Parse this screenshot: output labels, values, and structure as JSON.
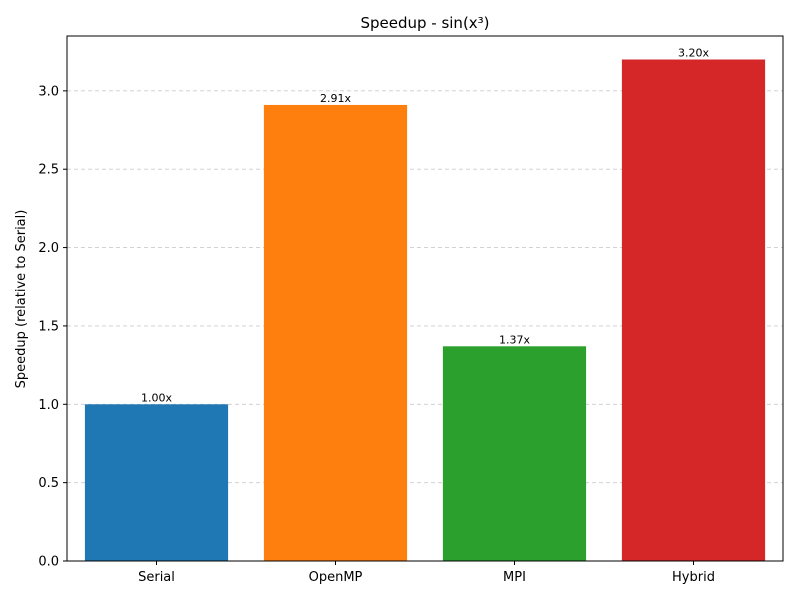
{
  "chart_data": {
    "type": "bar",
    "title": "Speedup - sin(x³)",
    "xlabel": "",
    "ylabel": "Speedup (relative to Serial)",
    "categories": [
      "Serial",
      "OpenMP",
      "MPI",
      "Hybrid"
    ],
    "values": [
      1.0,
      2.91,
      1.37,
      3.2
    ],
    "data_labels": [
      "1.00x",
      "2.91x",
      "1.37x",
      "3.20x"
    ],
    "colors": [
      "#1f77b4",
      "#ff7f0e",
      "#2ca02c",
      "#d62728"
    ],
    "ylim": [
      0,
      3.35
    ],
    "yticks": [
      0.0,
      0.5,
      1.0,
      1.5,
      2.0,
      2.5,
      3.0
    ],
    "ytick_labels": [
      "0.0",
      "0.5",
      "1.0",
      "1.5",
      "2.0",
      "2.5",
      "3.0"
    ],
    "grid": {
      "y": true,
      "x": false,
      "style": "dashed"
    },
    "legend": "none"
  }
}
